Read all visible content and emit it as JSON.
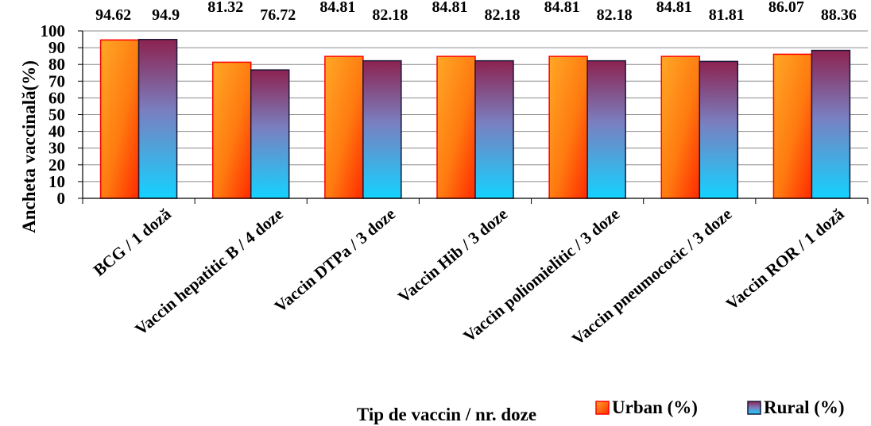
{
  "chart_data": {
    "type": "bar",
    "categories": [
      "BCG / 1 doză",
      "Vaccin hepatitic B / 4 doze",
      "Vaccin DTPa / 3 doze",
      "Vaccin Hib / 3 doze",
      "Vaccin poliomielitic / 3 doze",
      "Vaccin pneumococic / 3 doze",
      "Vaccin ROR / 1 doză"
    ],
    "series": [
      {
        "name": "Urban (%)",
        "values": [
          94.62,
          81.32,
          84.81,
          84.81,
          84.81,
          84.81,
          86.07
        ],
        "labels": [
          "94.62",
          "81.32",
          "84.81",
          "84.81",
          "84.81",
          "84.81",
          "86.07"
        ],
        "colors": {
          "top": "#ffa020",
          "bottom": "#ff2000",
          "border": "#ff0000"
        }
      },
      {
        "name": "Rural (%)",
        "values": [
          94.9,
          76.72,
          82.18,
          82.18,
          82.18,
          81.81,
          88.36
        ],
        "labels": [
          "94.9",
          "76.72",
          "82.18",
          "82.18",
          "82.18",
          "81.81",
          "88.36"
        ],
        "colors": {
          "top": "#8b2a55",
          "middle": "#6b8fcf",
          "bottom": "#1ad0ff",
          "border": "#1a1a3a"
        }
      }
    ],
    "xlabel": "Tip de vaccin / nr. doze",
    "ylabel": "Ancheta vaccinală(%)",
    "ylim": [
      0,
      100
    ],
    "yticks": [
      0,
      10,
      20,
      30,
      40,
      50,
      60,
      70,
      80,
      90,
      100
    ],
    "grid": true,
    "legend_position": "bottom-right"
  }
}
